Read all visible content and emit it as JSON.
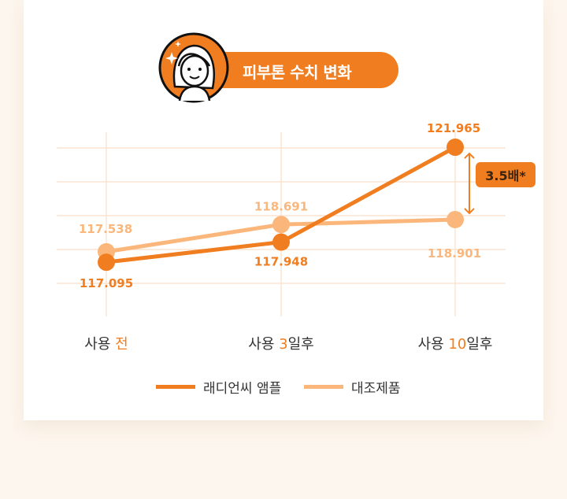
{
  "header": {
    "title": "피부톤 수치 변화"
  },
  "annotation": {
    "text": "3.5배*"
  },
  "colors": {
    "primary": "#f07d1f",
    "secondary": "#fbb77b",
    "grid": "#fadfc8",
    "background": "#fdf6ee"
  },
  "chart_data": {
    "type": "line",
    "categories": [
      "사용 전",
      "사용 3일후",
      "사용 10일후"
    ],
    "category_parts": [
      {
        "pre": "사용 ",
        "hl": "전",
        "post": ""
      },
      {
        "pre": "사용 ",
        "hl": "3",
        "post": "일후"
      },
      {
        "pre": "사용 ",
        "hl": "10",
        "post": "일후"
      }
    ],
    "series": [
      {
        "name": "래디언씨 앰플",
        "values": [
          117.095,
          117.948,
          121.965
        ],
        "labels": [
          "117.095",
          "117.948",
          "121.965"
        ],
        "color": "#f07d1f"
      },
      {
        "name": "대조제품",
        "values": [
          117.538,
          118.691,
          118.901
        ],
        "labels": [
          "117.538",
          "118.691",
          "118.901"
        ],
        "color": "#fbb77b"
      }
    ],
    "ylim": [
      114.8,
      122.6
    ],
    "grid": true,
    "legend_position": "bottom"
  }
}
